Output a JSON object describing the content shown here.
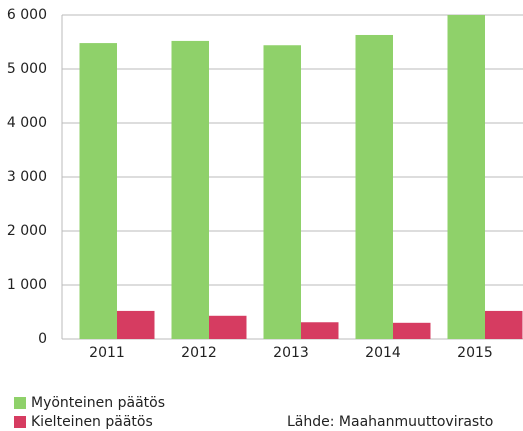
{
  "chart_data": {
    "type": "bar",
    "categories": [
      "2011",
      "2012",
      "2013",
      "2014",
      "2015"
    ],
    "series": [
      {
        "name": "Myönteinen päätös",
        "color": "#8fd16a",
        "values": [
          5480,
          5520,
          5440,
          5630,
          6000
        ]
      },
      {
        "name": "Kielteinen päätös",
        "color": "#d63c61",
        "values": [
          520,
          430,
          310,
          300,
          520
        ]
      }
    ],
    "ylim": [
      0,
      6000
    ],
    "yticks": [
      0,
      {
        "value": 1000,
        "label": "1 000"
      },
      {
        "value": 2000,
        "label": "2 000"
      },
      {
        "value": 3000,
        "label": "3 000"
      },
      {
        "value": 4000,
        "label": "4 000"
      },
      {
        "value": 5000,
        "label": "5 000"
      },
      {
        "value": 6000,
        "label": "6 000"
      }
    ],
    "grid": true,
    "source": "Lähde: Maahanmuuttovirasto"
  }
}
